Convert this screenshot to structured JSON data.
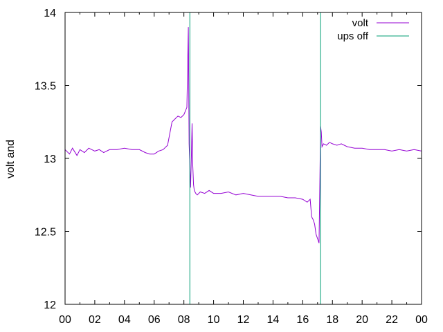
{
  "chart_data": {
    "type": "line",
    "ylabel": "volt and",
    "xlabel": "",
    "ylim": [
      12,
      14
    ],
    "y_ticks": [
      "12",
      "12.5",
      "13",
      "13.5",
      "14"
    ],
    "y_tick_values": [
      12,
      12.5,
      13,
      13.5,
      14
    ],
    "xlim": [
      0,
      24
    ],
    "x_ticks": [
      "00",
      "02",
      "04",
      "06",
      "08",
      "10",
      "12",
      "14",
      "16",
      "18",
      "20",
      "22",
      "00"
    ],
    "x_tick_values": [
      0,
      2,
      4,
      6,
      8,
      10,
      12,
      14,
      16,
      18,
      20,
      22,
      24
    ],
    "grid": false,
    "legend_position": "top-right",
    "series": [
      {
        "name": "volt",
        "color": "#9400d3",
        "x": [
          0,
          0.3,
          0.5,
          0.8,
          1.0,
          1.3,
          1.6,
          2.0,
          2.3,
          2.6,
          3.0,
          3.5,
          4.0,
          4.5,
          5.0,
          5.4,
          5.7,
          6.0,
          6.3,
          6.6,
          6.9,
          7.2,
          7.4,
          7.6,
          7.8,
          8.0,
          8.2,
          8.3,
          8.35,
          8.4,
          8.45,
          8.5,
          8.55,
          8.6,
          8.65,
          8.7,
          8.8,
          8.9,
          9.1,
          9.4,
          9.7,
          10.0,
          10.5,
          11.0,
          11.5,
          12.0,
          12.5,
          13.0,
          13.5,
          14.0,
          14.5,
          15.0,
          15.5,
          16.0,
          16.3,
          16.5,
          16.6,
          16.7,
          16.8,
          16.9,
          17.0,
          17.1,
          17.15,
          17.2,
          17.25,
          17.3,
          17.4,
          17.6,
          17.8,
          18.0,
          18.3,
          18.6,
          19.0,
          19.5,
          20.0,
          20.5,
          21.0,
          21.5,
          22.0,
          22.5,
          23.0,
          23.5,
          24.0
        ],
        "values": [
          13.06,
          13.03,
          13.07,
          13.02,
          13.06,
          13.04,
          13.07,
          13.05,
          13.06,
          13.04,
          13.06,
          13.06,
          13.07,
          13.06,
          13.06,
          13.04,
          13.03,
          13.03,
          13.05,
          13.06,
          13.09,
          13.25,
          13.27,
          13.29,
          13.28,
          13.3,
          13.35,
          13.9,
          13.1,
          12.95,
          12.8,
          13.0,
          13.24,
          12.95,
          12.82,
          12.78,
          12.76,
          12.75,
          12.77,
          12.76,
          12.78,
          12.76,
          12.76,
          12.77,
          12.75,
          12.76,
          12.75,
          12.74,
          12.74,
          12.74,
          12.74,
          12.73,
          12.73,
          12.72,
          12.7,
          12.72,
          12.6,
          12.58,
          12.55,
          12.48,
          12.45,
          12.42,
          12.8,
          13.22,
          13.18,
          13.08,
          13.1,
          13.09,
          13.11,
          13.1,
          13.09,
          13.1,
          13.08,
          13.07,
          13.07,
          13.06,
          13.06,
          13.06,
          13.05,
          13.06,
          13.05,
          13.06,
          13.05
        ]
      },
      {
        "name": "ups off",
        "color": "#009e73",
        "x_events": [
          8.4,
          17.2
        ]
      }
    ]
  }
}
